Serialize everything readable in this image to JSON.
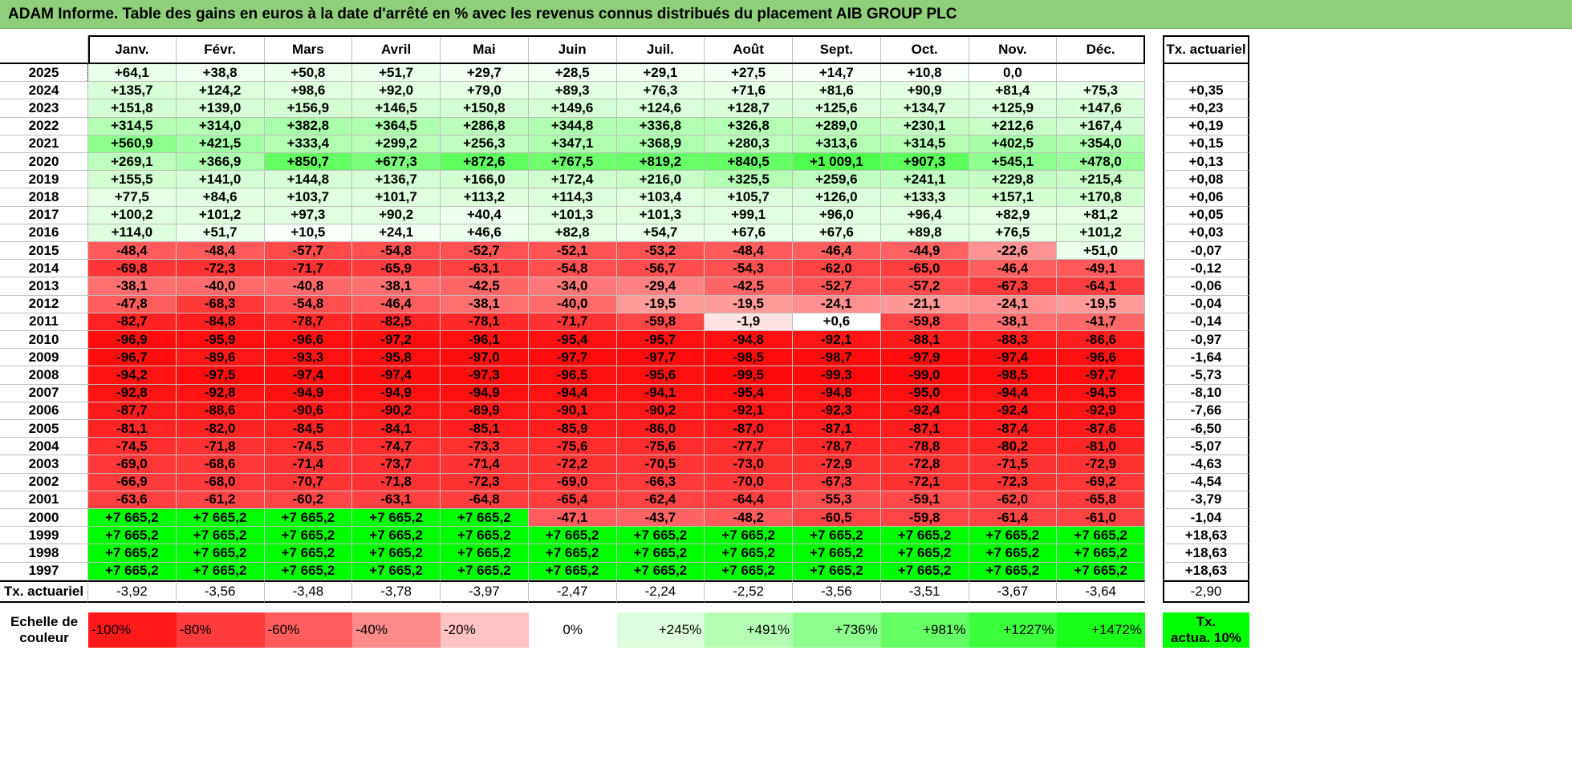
{
  "title": "ADAM Informe. Table des gains en euros à la date d'arrêté en % avec les revenus connus distribués du placement AIB GROUP PLC",
  "months": [
    "Janv.",
    "Févr.",
    "Mars",
    "Avril",
    "Mai",
    "Juin",
    "Juil.",
    "Août",
    "Sept.",
    "Oct.",
    "Nov.",
    "Déc."
  ],
  "rate_header": "Tx. actuariel",
  "rows": [
    {
      "year": "2025",
      "values": [
        "+64,1",
        "+38,8",
        "+50,8",
        "+51,7",
        "+29,7",
        "+28,5",
        "+29,1",
        "+27,5",
        "+14,7",
        "+10,8",
        "0,0",
        ""
      ],
      "rate": ""
    },
    {
      "year": "2024",
      "values": [
        "+135,7",
        "+124,2",
        "+98,6",
        "+92,0",
        "+79,0",
        "+89,3",
        "+76,3",
        "+71,6",
        "+81,6",
        "+90,9",
        "+81,4",
        "+75,3"
      ],
      "rate": "+0,35"
    },
    {
      "year": "2023",
      "values": [
        "+151,8",
        "+139,0",
        "+156,9",
        "+146,5",
        "+150,8",
        "+149,6",
        "+124,6",
        "+128,7",
        "+125,6",
        "+134,7",
        "+125,9",
        "+147,6"
      ],
      "rate": "+0,23"
    },
    {
      "year": "2022",
      "values": [
        "+314,5",
        "+314,0",
        "+382,8",
        "+364,5",
        "+286,8",
        "+344,8",
        "+336,8",
        "+326,8",
        "+289,0",
        "+230,1",
        "+212,6",
        "+167,4"
      ],
      "rate": "+0,19"
    },
    {
      "year": "2021",
      "values": [
        "+560,9",
        "+421,5",
        "+333,4",
        "+299,2",
        "+256,3",
        "+347,1",
        "+368,9",
        "+280,3",
        "+313,6",
        "+314,5",
        "+402,5",
        "+354,0"
      ],
      "rate": "+0,15"
    },
    {
      "year": "2020",
      "values": [
        "+269,1",
        "+366,9",
        "+850,7",
        "+677,3",
        "+872,6",
        "+767,5",
        "+819,2",
        "+840,5",
        "+1 009,1",
        "+907,3",
        "+545,1",
        "+478,0"
      ],
      "rate": "+0,13"
    },
    {
      "year": "2019",
      "values": [
        "+155,5",
        "+141,0",
        "+144,8",
        "+136,7",
        "+166,0",
        "+172,4",
        "+216,0",
        "+325,5",
        "+259,6",
        "+241,1",
        "+229,8",
        "+215,4"
      ],
      "rate": "+0,08"
    },
    {
      "year": "2018",
      "values": [
        "+77,5",
        "+84,6",
        "+103,7",
        "+101,7",
        "+113,2",
        "+114,3",
        "+103,4",
        "+105,7",
        "+126,0",
        "+133,3",
        "+157,1",
        "+170,8"
      ],
      "rate": "+0,06"
    },
    {
      "year": "2017",
      "values": [
        "+100,2",
        "+101,2",
        "+97,3",
        "+90,2",
        "+40,4",
        "+101,3",
        "+101,3",
        "+99,1",
        "+96,0",
        "+96,4",
        "+82,9",
        "+81,2"
      ],
      "rate": "+0,05"
    },
    {
      "year": "2016",
      "values": [
        "+114,0",
        "+51,7",
        "+10,5",
        "+24,1",
        "+46,6",
        "+82,8",
        "+54,7",
        "+67,6",
        "+67,6",
        "+89,8",
        "+76,5",
        "+101,2"
      ],
      "rate": "+0,03"
    },
    {
      "year": "2015",
      "values": [
        "-48,4",
        "-48,4",
        "-57,7",
        "-54,8",
        "-52,7",
        "-52,1",
        "-53,2",
        "-48,4",
        "-46,4",
        "-44,9",
        "-22,6",
        "+51,0"
      ],
      "rate": "-0,07"
    },
    {
      "year": "2014",
      "values": [
        "-69,8",
        "-72,3",
        "-71,7",
        "-65,9",
        "-63,1",
        "-54,8",
        "-56,7",
        "-54,3",
        "-62,0",
        "-65,0",
        "-46,4",
        "-49,1"
      ],
      "rate": "-0,12"
    },
    {
      "year": "2013",
      "values": [
        "-38,1",
        "-40,0",
        "-40,8",
        "-38,1",
        "-42,5",
        "-34,0",
        "-29,4",
        "-42,5",
        "-52,7",
        "-57,2",
        "-67,3",
        "-64,1"
      ],
      "rate": "-0,06"
    },
    {
      "year": "2012",
      "values": [
        "-47,8",
        "-68,3",
        "-54,8",
        "-46,4",
        "-38,1",
        "-40,0",
        "-19,5",
        "-19,5",
        "-24,1",
        "-21,1",
        "-24,1",
        "-19,5"
      ],
      "rate": "-0,04"
    },
    {
      "year": "2011",
      "values": [
        "-82,7",
        "-84,8",
        "-78,7",
        "-82,5",
        "-78,1",
        "-71,7",
        "-59,8",
        "-1,9",
        "+0,6",
        "-59,8",
        "-38,1",
        "-41,7"
      ],
      "rate": "-0,14"
    },
    {
      "year": "2010",
      "values": [
        "-96,9",
        "-95,9",
        "-96,6",
        "-97,2",
        "-96,1",
        "-95,4",
        "-95,7",
        "-94,8",
        "-92,1",
        "-88,1",
        "-88,3",
        "-86,6"
      ],
      "rate": "-0,97"
    },
    {
      "year": "2009",
      "values": [
        "-96,7",
        "-89,6",
        "-93,3",
        "-95,8",
        "-97,0",
        "-97,7",
        "-97,7",
        "-98,5",
        "-98,7",
        "-97,9",
        "-97,4",
        "-96,6"
      ],
      "rate": "-1,64"
    },
    {
      "year": "2008",
      "values": [
        "-94,2",
        "-97,5",
        "-97,4",
        "-97,4",
        "-97,3",
        "-96,5",
        "-95,6",
        "-99,5",
        "-99,3",
        "-99,0",
        "-98,5",
        "-97,7"
      ],
      "rate": "-5,73"
    },
    {
      "year": "2007",
      "values": [
        "-92,8",
        "-92,8",
        "-94,9",
        "-94,9",
        "-94,9",
        "-94,4",
        "-94,1",
        "-95,4",
        "-94,8",
        "-95,0",
        "-94,4",
        "-94,5"
      ],
      "rate": "-8,10"
    },
    {
      "year": "2006",
      "values": [
        "-87,7",
        "-88,6",
        "-90,6",
        "-90,2",
        "-89,9",
        "-90,1",
        "-90,2",
        "-92,1",
        "-92,3",
        "-92,4",
        "-92,4",
        "-92,9"
      ],
      "rate": "-7,66"
    },
    {
      "year": "2005",
      "values": [
        "-81,1",
        "-82,0",
        "-84,5",
        "-84,1",
        "-85,1",
        "-85,9",
        "-86,0",
        "-87,0",
        "-87,1",
        "-87,1",
        "-87,4",
        "-87,6"
      ],
      "rate": "-6,50"
    },
    {
      "year": "2004",
      "values": [
        "-74,5",
        "-71,8",
        "-74,5",
        "-74,7",
        "-73,3",
        "-75,6",
        "-75,6",
        "-77,7",
        "-78,7",
        "-78,8",
        "-80,2",
        "-81,0"
      ],
      "rate": "-5,07"
    },
    {
      "year": "2003",
      "values": [
        "-69,0",
        "-68,6",
        "-71,4",
        "-73,7",
        "-71,4",
        "-72,2",
        "-70,5",
        "-73,0",
        "-72,9",
        "-72,8",
        "-71,5",
        "-72,9"
      ],
      "rate": "-4,63"
    },
    {
      "year": "2002",
      "values": [
        "-66,9",
        "-68,0",
        "-70,7",
        "-71,8",
        "-72,3",
        "-69,0",
        "-66,3",
        "-70,0",
        "-67,3",
        "-72,1",
        "-72,3",
        "-69,2"
      ],
      "rate": "-4,54"
    },
    {
      "year": "2001",
      "values": [
        "-63,6",
        "-61,2",
        "-60,2",
        "-63,1",
        "-64,8",
        "-65,4",
        "-62,4",
        "-64,4",
        "-55,3",
        "-59,1",
        "-62,0",
        "-65,8"
      ],
      "rate": "-3,79"
    },
    {
      "year": "2000",
      "values": [
        "+7 665,2",
        "+7 665,2",
        "+7 665,2",
        "+7 665,2",
        "+7 665,2",
        "-47,1",
        "-43,7",
        "-48,2",
        "-60,5",
        "-59,8",
        "-61,4",
        "-61,0"
      ],
      "rate": "-1,04"
    },
    {
      "year": "1999",
      "values": [
        "+7 665,2",
        "+7 665,2",
        "+7 665,2",
        "+7 665,2",
        "+7 665,2",
        "+7 665,2",
        "+7 665,2",
        "+7 665,2",
        "+7 665,2",
        "+7 665,2",
        "+7 665,2",
        "+7 665,2"
      ],
      "rate": "+18,63"
    },
    {
      "year": "1998",
      "values": [
        "+7 665,2",
        "+7 665,2",
        "+7 665,2",
        "+7 665,2",
        "+7 665,2",
        "+7 665,2",
        "+7 665,2",
        "+7 665,2",
        "+7 665,2",
        "+7 665,2",
        "+7 665,2",
        "+7 665,2"
      ],
      "rate": "+18,63"
    },
    {
      "year": "1997",
      "values": [
        "+7 665,2",
        "+7 665,2",
        "+7 665,2",
        "+7 665,2",
        "+7 665,2",
        "+7 665,2",
        "+7 665,2",
        "+7 665,2",
        "+7 665,2",
        "+7 665,2",
        "+7 665,2",
        "+7 665,2"
      ],
      "rate": "+18,63"
    }
  ],
  "footer": {
    "label": "Tx. actuariel",
    "values": [
      "-3,92",
      "-3,56",
      "-3,48",
      "-3,78",
      "-3,97",
      "-2,47",
      "-2,24",
      "-2,52",
      "-3,56",
      "-3,51",
      "-3,67",
      "-3,64"
    ],
    "total": "-2,90"
  },
  "legend": {
    "label_line1": "Echelle de",
    "label_line2": "couleur",
    "items": [
      {
        "text": "-100%",
        "color": "#ff1a1a",
        "align": "left"
      },
      {
        "text": "-80%",
        "color": "#ff3b3b",
        "align": "left"
      },
      {
        "text": "-60%",
        "color": "#ff5c5c",
        "align": "left"
      },
      {
        "text": "-40%",
        "color": "#ff8a8a",
        "align": "left"
      },
      {
        "text": "-20%",
        "color": "#ffc2c2",
        "align": "left"
      },
      {
        "text": "0%",
        "color": "#ffffff",
        "align": "center"
      },
      {
        "text": "+245%",
        "color": "#dcffdc",
        "align": "right"
      },
      {
        "text": "+491%",
        "color": "#b5ffb5",
        "align": "right"
      },
      {
        "text": "+736%",
        "color": "#8dff8d",
        "align": "right"
      },
      {
        "text": "+981%",
        "color": "#64ff64",
        "align": "right"
      },
      {
        "text": "+1227%",
        "color": "#3cff3c",
        "align": "right"
      },
      {
        "text": "+1472%",
        "color": "#1aff1a",
        "align": "right"
      }
    ],
    "box_line1": "Tx.",
    "box_line2": "actua. 10%",
    "box_color": "#00ff00"
  }
}
